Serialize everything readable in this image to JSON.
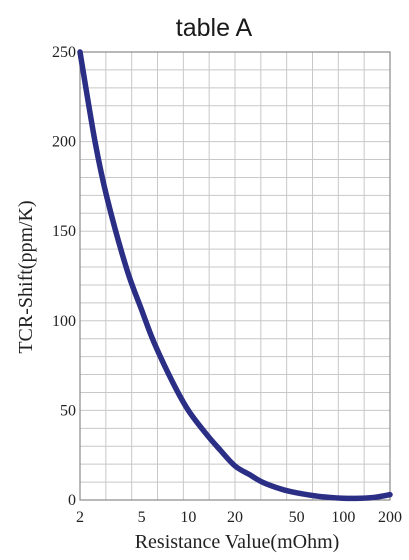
{
  "chart_data": {
    "type": "line",
    "title": "table A",
    "xlabel": "Resistance Value(mOhm)",
    "ylabel": "TCR-Shift(ppm/K)",
    "x_scale": "log",
    "xlim": [
      2,
      200
    ],
    "ylim": [
      0,
      250
    ],
    "x_ticks": [
      2,
      5,
      10,
      20,
      50,
      100,
      200
    ],
    "x_tick_labels": [
      "2",
      "5",
      "10",
      "20",
      "50",
      "100",
      "200"
    ],
    "y_ticks": [
      0,
      50,
      100,
      150,
      200,
      250
    ],
    "y_tick_labels": [
      "0",
      "50",
      "100",
      "150",
      "200",
      "250"
    ],
    "grid": true,
    "legend": "none",
    "series": [
      {
        "color": "#2b2e85",
        "x": [
          2,
          2.5,
          3,
          4,
          5,
          6,
          8,
          10,
          13,
          16,
          20,
          25,
          30,
          40,
          50,
          70,
          100,
          130,
          160,
          200
        ],
        "y": [
          250,
          200,
          168,
          129,
          106,
          88,
          65,
          50,
          37,
          28,
          19,
          14,
          10,
          6,
          4,
          2,
          1,
          1,
          1.5,
          3
        ]
      }
    ]
  }
}
